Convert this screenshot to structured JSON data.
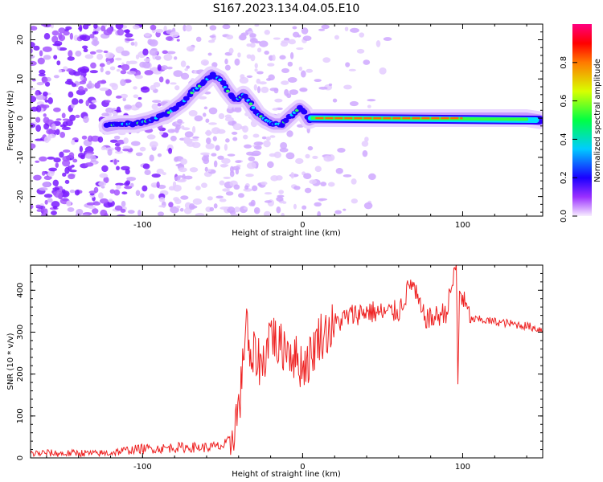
{
  "title": "S167.2023.134.04.05.E10",
  "chart_data": [
    {
      "type": "heatmap",
      "title": "",
      "xlabel": "Height of straight line (km)",
      "ylabel": "Frequency (Hz)",
      "xlim": [
        -170,
        150
      ],
      "ylim": [
        -25,
        24
      ],
      "xticks": [
        -100,
        0,
        100
      ],
      "yticks": [
        -20,
        -10,
        0,
        10,
        20
      ],
      "colorbar": {
        "label": "Normalized spectral amplitude",
        "range": [
          0,
          1
        ],
        "ticks": [
          "0.0",
          "0.2",
          "0.4",
          "0.6",
          "0.8"
        ],
        "colors": [
          "#f8eeff",
          "#9b30ff",
          "#1a00ff",
          "#00ccff",
          "#00ff44",
          "#d8ff00",
          "#ff7a00",
          "#ff0000",
          "#ff0080"
        ]
      },
      "ridge": {
        "name": "",
        "x": [
          -122,
          -115,
          -105,
          -95,
          -85,
          -75,
          -68,
          -62,
          -57,
          -52,
          -47,
          -43,
          -40,
          -37,
          -33,
          -28,
          -23,
          -18,
          -13,
          -9,
          -5,
          -2,
          1,
          4,
          7,
          10,
          20,
          40,
          60,
          80,
          100,
          120,
          140,
          148
        ],
        "y": [
          -2,
          -1.5,
          -1.5,
          -0.5,
          1,
          4,
          7,
          9,
          11,
          10,
          7,
          5,
          5,
          6,
          4,
          1,
          -0.5,
          -1.5,
          -1.5,
          0,
          1.5,
          2.5,
          1.5,
          -0.5,
          0,
          0,
          0,
          0,
          0,
          0,
          0,
          0,
          0,
          -0.5
        ]
      }
    },
    {
      "type": "line",
      "title": "",
      "xlabel": "Height of straight line (km)",
      "ylabel": "SNR (10 * v/v)",
      "xlim": [
        -170,
        150
      ],
      "ylim": [
        0,
        460
      ],
      "xticks": [
        -100,
        0,
        100
      ],
      "yticks": [
        0,
        100,
        200,
        300,
        400
      ],
      "series": [
        {
          "name": "",
          "color": "#ee2222",
          "x": [
            -170,
            -160,
            -150,
            -140,
            -130,
            -120,
            -110,
            -100,
            -90,
            -80,
            -70,
            -60,
            -50,
            -45,
            -40,
            -38,
            -35,
            -33,
            -30,
            -25,
            -20,
            -15,
            -10,
            -5,
            0,
            5,
            10,
            15,
            20,
            30,
            40,
            50,
            60,
            68,
            75,
            80,
            90,
            96,
            97,
            98,
            105,
            110,
            120,
            130,
            140,
            150
          ],
          "values": [
            10,
            12,
            10,
            12,
            10,
            12,
            18,
            22,
            22,
            25,
            25,
            25,
            28,
            40,
            120,
            180,
            360,
            200,
            250,
            220,
            310,
            260,
            270,
            240,
            220,
            240,
            290,
            300,
            320,
            340,
            350,
            345,
            350,
            420,
            340,
            330,
            350,
            460,
            170,
            400,
            330,
            330,
            325,
            320,
            315,
            305
          ]
        }
      ]
    }
  ]
}
